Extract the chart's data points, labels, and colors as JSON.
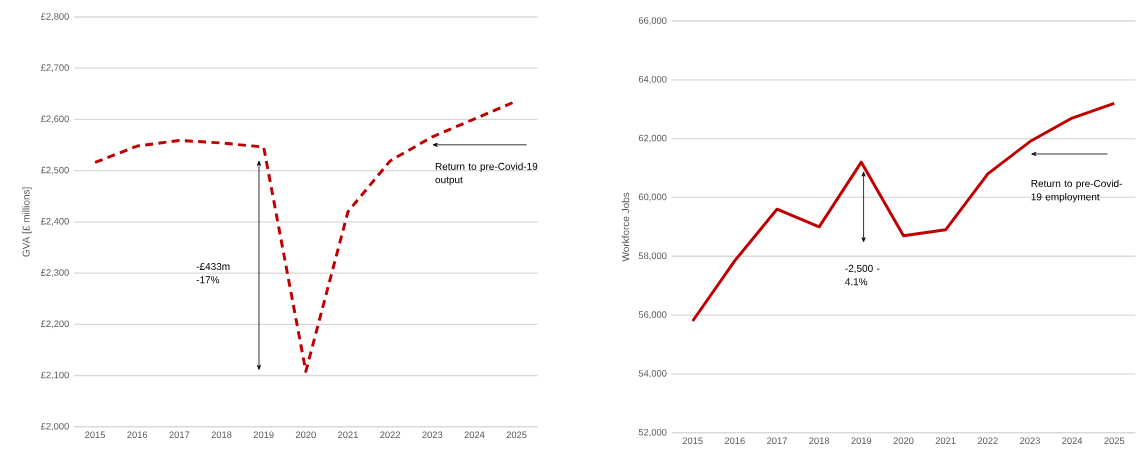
{
  "chart_data": [
    {
      "type": "line",
      "ylabel": "GVA [£ millions]",
      "categories": [
        "2015",
        "2016",
        "2017",
        "2018",
        "2019",
        "2020",
        "2021",
        "2022",
        "2023",
        "2024",
        "2025"
      ],
      "series": [
        {
          "color": "#c00000",
          "line_style": "dashed",
          "values": [
            2516,
            2548,
            2559,
            2554,
            2546,
            2108,
            2420,
            2519,
            2566,
            2601,
            2636
          ]
        }
      ],
      "ylim": [
        2000,
        2800
      ],
      "yticks": [
        {
          "value": 2000,
          "label": "£2,000"
        },
        {
          "value": 2100,
          "label": "£2,100"
        },
        {
          "value": 2200,
          "label": "£2,200"
        },
        {
          "value": 2300,
          "label": "£2,300"
        },
        {
          "value": 2400,
          "label": "£2,400"
        },
        {
          "value": 2500,
          "label": "£2,500"
        },
        {
          "value": 2600,
          "label": "£2,600"
        },
        {
          "value": 2700,
          "label": "£2,700"
        },
        {
          "value": 2800,
          "label": "£2,800"
        }
      ],
      "grid": "y",
      "annotations": [
        "-£433m -17%",
        "Return to pre-Covid-19 output"
      ]
    },
    {
      "type": "line",
      "ylabel": "Workforce Jobs",
      "categories": [
        "2015",
        "2016",
        "2017",
        "2018",
        "2019",
        "2020",
        "2021",
        "2022",
        "2023",
        "2024",
        "2025"
      ],
      "series": [
        {
          "color": "#c00000",
          "line_style": "solid",
          "values": [
            55800,
            57850,
            59600,
            59000,
            61200,
            58700,
            58900,
            60800,
            61900,
            62700,
            63200
          ]
        }
      ],
      "ylim": [
        52000,
        66000
      ],
      "yticks": [
        {
          "value": 52000,
          "label": "52,000"
        },
        {
          "value": 54000,
          "label": "54,000"
        },
        {
          "value": 56000,
          "label": "56,000"
        },
        {
          "value": 58000,
          "label": "58,000"
        },
        {
          "value": 60000,
          "label": "60,000"
        },
        {
          "value": 62000,
          "label": "62,000"
        },
        {
          "value": 64000,
          "label": "64,000"
        },
        {
          "value": 66000,
          "label": "66,000"
        }
      ],
      "grid": "y",
      "annotations": [
        "-2,500 -4.1%",
        "Return to pre-Covid-19 employment"
      ]
    }
  ]
}
